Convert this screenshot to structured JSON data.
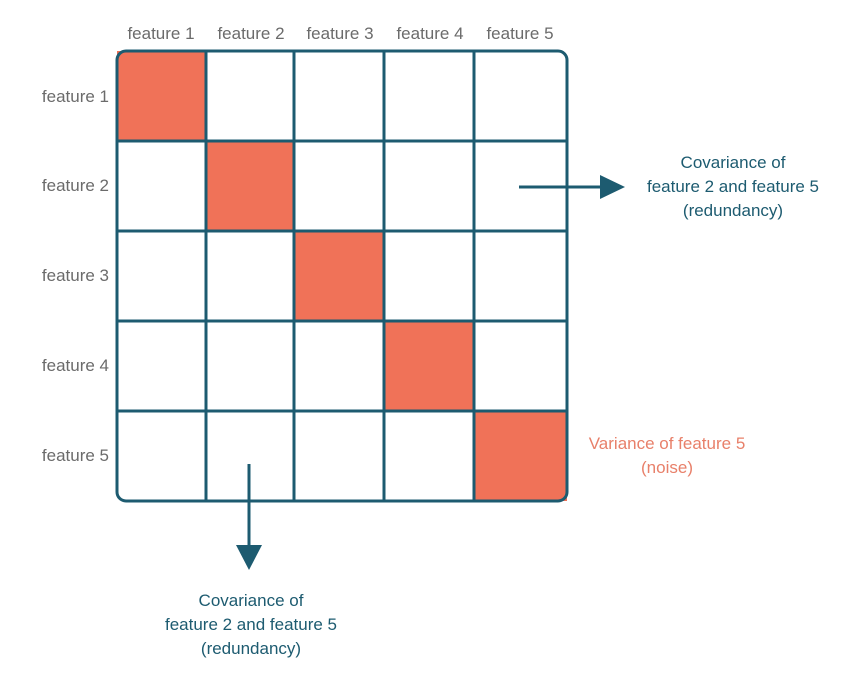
{
  "colors": {
    "grid_line": "#1d5b70",
    "diagonal_fill": "#f07258",
    "label_gray": "#6b6b6b",
    "annotation_teal": "#1d5b70",
    "annotation_salmon": "#e8806a",
    "background": "#ffffff"
  },
  "matrix": {
    "column_labels": [
      "feature 1",
      "feature 2",
      "feature 3",
      "feature 4",
      "feature 5"
    ],
    "row_labels": [
      "feature 1",
      "feature 2",
      "feature 3",
      "feature 4",
      "feature 5"
    ],
    "highlighted_cells": [
      [
        0,
        0
      ],
      [
        1,
        1
      ],
      [
        2,
        2
      ],
      [
        3,
        3
      ],
      [
        4,
        4
      ]
    ]
  },
  "annotations": {
    "right_covariance": {
      "lines": [
        "Covariance of",
        "feature 2 and feature 5",
        "(redundancy)"
      ],
      "icon": "arrow-right-icon"
    },
    "bottom_covariance": {
      "lines": [
        "Covariance of",
        "feature 2 and feature 5",
        "(redundancy)"
      ],
      "icon": "arrow-down-icon"
    },
    "variance": {
      "lines": [
        "Variance of feature 5",
        "(noise)"
      ]
    }
  }
}
